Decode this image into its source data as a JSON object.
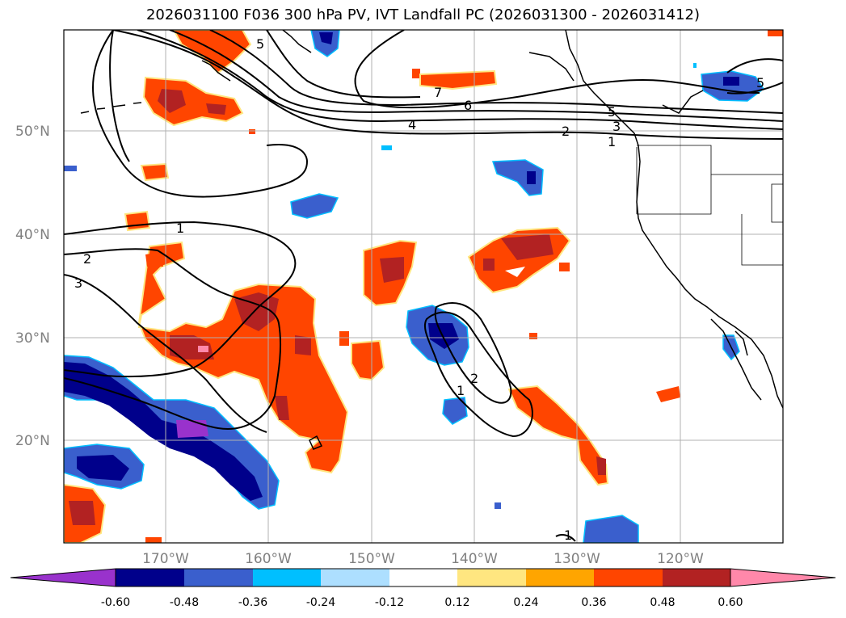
{
  "title": "2026031100 F036 300 hPa PV, IVT Landfall PC (2026031300 - 2026031412)",
  "lat_labels": [
    "50°N",
    "40°N",
    "30°N",
    "20°N"
  ],
  "lon_labels": [
    "170°W",
    "160°W",
    "150°W",
    "140°W",
    "130°W",
    "120°W"
  ],
  "contour_labels": [
    "5",
    "7",
    "6",
    "4",
    "5",
    "2",
    "3",
    "1",
    "1",
    "2",
    "3",
    "2",
    "1",
    "5",
    "1"
  ],
  "colorbar": {
    "tick_labels": [
      "-0.60",
      "-0.48",
      "-0.36",
      "-0.24",
      "-0.12",
      "0.12",
      "0.24",
      "0.36",
      "0.48",
      "0.60"
    ],
    "colors": [
      "#9932CC",
      "#00008B",
      "#3A5FCD",
      "#00BFFF",
      "#ADDFFF",
      "#FFFFFF",
      "#FFE680",
      "#FFA500",
      "#FF4500",
      "#B22222",
      "#FF88AA"
    ]
  },
  "colors": {
    "contour": "#000000",
    "grid": "#B0B0B0",
    "coast": "#000000"
  }
}
